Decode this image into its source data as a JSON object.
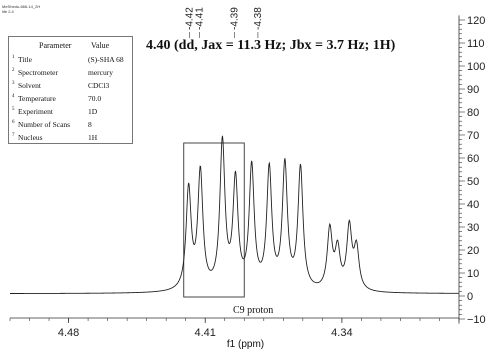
{
  "header_text": [
    "MeShedu-666-14_2H",
    "life 2.4"
  ],
  "parameters": {
    "col_param": "Parameter",
    "col_value": "Value",
    "rows": [
      {
        "idx": "1",
        "name": "Title",
        "value": "(S)-SHA 68"
      },
      {
        "idx": "2",
        "name": "Spectrometer",
        "value": "mercury"
      },
      {
        "idx": "3",
        "name": "Solvent",
        "value": "CDCl3"
      },
      {
        "idx": "4",
        "name": "Temperature",
        "value": "70.0"
      },
      {
        "idx": "5",
        "name": "Experiment",
        "value": "1D"
      },
      {
        "idx": "6",
        "name": "Number of Scans",
        "value": "8"
      },
      {
        "idx": "7",
        "name": "Nucleus",
        "value": "1H"
      }
    ]
  },
  "annotation": "4.40 (dd, Jax = 11.3 Hz; Jbx = 3.7 Hz; 1H)",
  "region_label": "C9 proton",
  "chart_data": {
    "type": "line",
    "xlabel": "f1 (ppm)",
    "xlim": [
      4.51,
      4.28
    ],
    "x_reversed": true,
    "ylim": [
      -12,
      122
    ],
    "xticks": [
      4.48,
      4.41,
      4.34
    ],
    "xtick_labels": [
      "4.48",
      "4.41",
      "4.34"
    ],
    "yticks": [
      -10,
      0,
      10,
      20,
      30,
      40,
      50,
      60,
      70,
      80,
      90,
      100,
      110,
      120
    ],
    "ytick_labels": [
      "−10",
      "0",
      "10",
      "20",
      "30",
      "40",
      "50",
      "60",
      "70",
      "80",
      "90",
      "100",
      "110",
      "120"
    ],
    "peak_labels": [
      {
        "x": 4.418,
        "label": "-4.42"
      },
      {
        "x": 4.413,
        "label": "-4.41"
      },
      {
        "x": 4.395,
        "label": "-4.39"
      },
      {
        "x": 4.383,
        "label": "-4.38"
      }
    ],
    "peaks": [
      {
        "x": 4.4185,
        "h": 44
      },
      {
        "x": 4.4125,
        "h": 51
      },
      {
        "x": 4.4012,
        "h": 64
      },
      {
        "x": 4.3945,
        "h": 47
      },
      {
        "x": 4.3862,
        "h": 53
      },
      {
        "x": 4.3772,
        "h": 52
      },
      {
        "x": 4.3692,
        "h": 54
      },
      {
        "x": 4.3612,
        "h": 53
      },
      {
        "x": 4.3462,
        "h": 26
      },
      {
        "x": 4.3422,
        "h": 17
      },
      {
        "x": 4.3362,
        "h": 27
      },
      {
        "x": 4.3325,
        "h": 18
      }
    ],
    "baseline": 1,
    "highlight_region": [
      4.421,
      4.39
    ]
  }
}
